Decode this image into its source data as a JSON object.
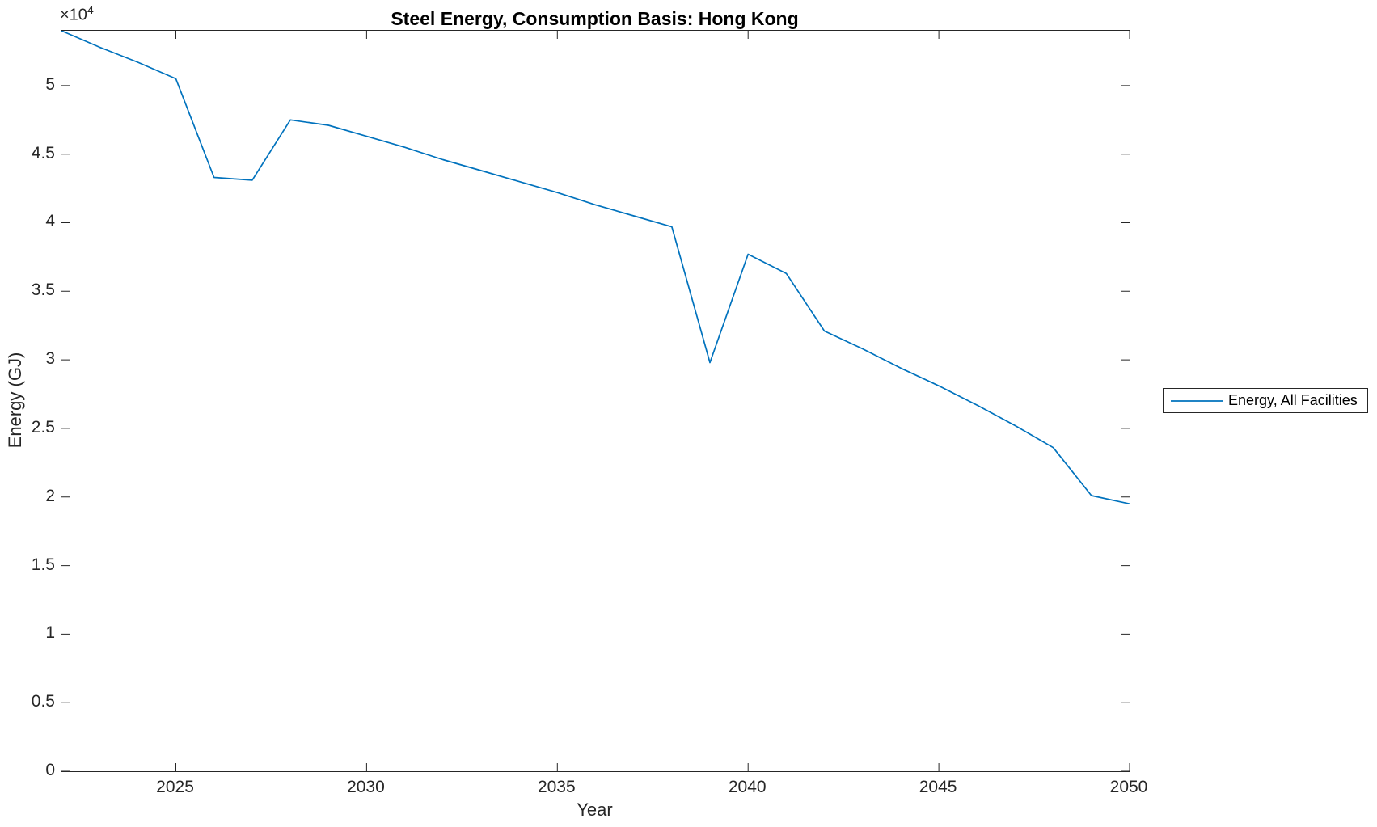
{
  "chart_data": {
    "type": "line",
    "title": "Steel Energy, Consumption Basis: Hong Kong",
    "xlabel": "Year",
    "ylabel": "Energy (GJ)",
    "y_offset_text": {
      "base": "×10",
      "exponent": "4"
    },
    "xlim": [
      2022,
      2050
    ],
    "ylim": [
      0,
      54000
    ],
    "x_ticks": [
      2025,
      2030,
      2035,
      2040,
      2045,
      2050
    ],
    "x_tick_labels": [
      "2025",
      "2030",
      "2035",
      "2040",
      "2045",
      "2050"
    ],
    "y_ticks": [
      0,
      5000,
      10000,
      15000,
      20000,
      25000,
      30000,
      35000,
      40000,
      45000,
      50000
    ],
    "y_tick_labels": [
      "0",
      "0.5",
      "1",
      "1.5",
      "2",
      "2.5",
      "3",
      "3.5",
      "4",
      "4.5",
      "5"
    ],
    "grid": false,
    "legend_position": "right-outside",
    "colors": {
      "line": "#0072BD",
      "axis": "#262626",
      "title_text": "#000000",
      "background": "#ffffff"
    },
    "series": [
      {
        "name": "Energy, All Facilities",
        "color": "#0072BD",
        "x": [
          2022,
          2023,
          2024,
          2025,
          2026,
          2027,
          2028,
          2029,
          2030,
          2031,
          2032,
          2033,
          2034,
          2035,
          2036,
          2037,
          2038,
          2039,
          2040,
          2041,
          2042,
          2043,
          2044,
          2045,
          2046,
          2047,
          2048,
          2049,
          2050
        ],
        "values": [
          54000,
          52800,
          51700,
          50500,
          43300,
          43100,
          47500,
          47100,
          46300,
          45500,
          44600,
          43800,
          43000,
          42200,
          41300,
          40500,
          39700,
          29800,
          37700,
          36300,
          32100,
          30800,
          29400,
          28100,
          26700,
          25200,
          23600,
          20100,
          19500
        ]
      }
    ]
  }
}
